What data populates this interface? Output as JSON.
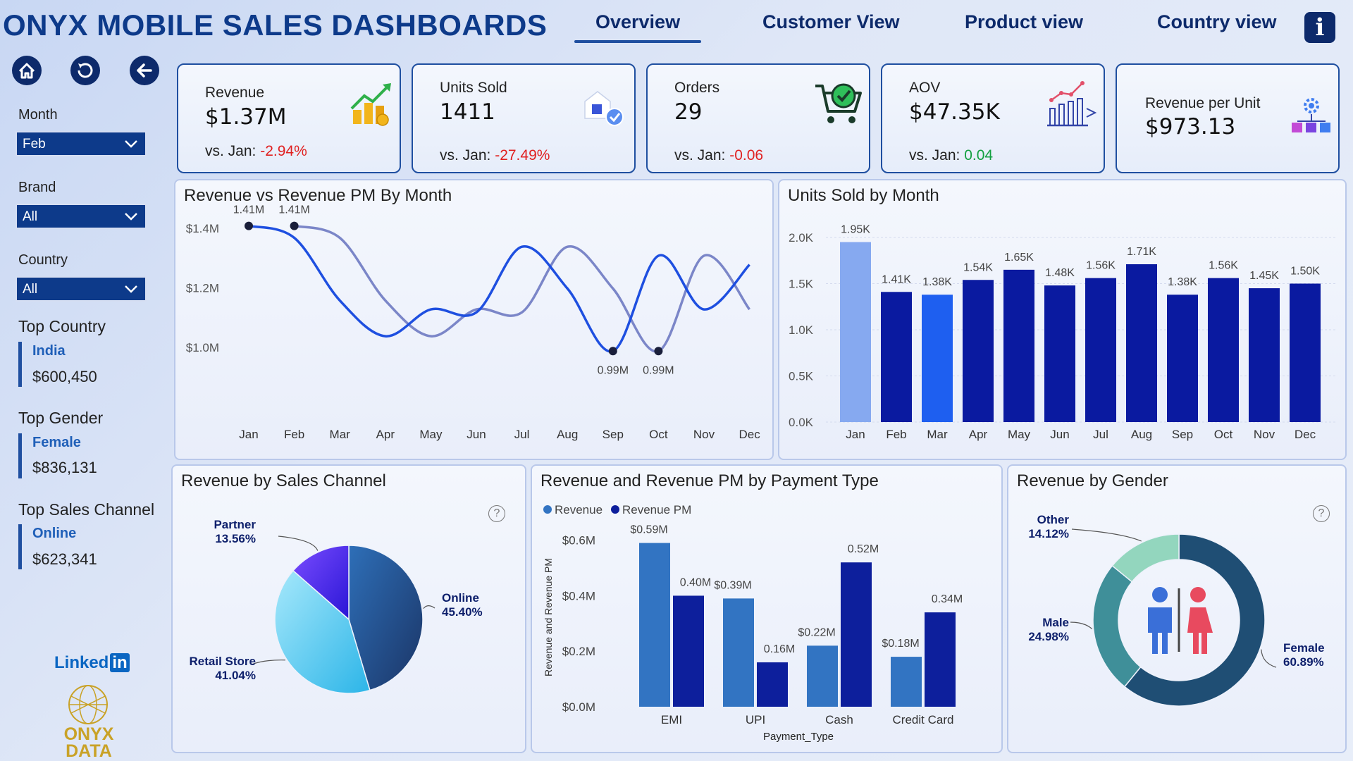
{
  "header": {
    "title": "ONYX MOBILE SALES DASHBOARDS",
    "tabs": [
      {
        "label": "Overview",
        "active": true
      },
      {
        "label": "Customer View",
        "active": false
      },
      {
        "label": "Product view",
        "active": false
      },
      {
        "label": "Country view",
        "active": false
      }
    ],
    "info_icon": "info-icon"
  },
  "nav_icons": [
    "home-icon",
    "reset-icon",
    "back-arrow-icon"
  ],
  "filters": [
    {
      "label": "Month",
      "value": "Feb"
    },
    {
      "label": "Brand",
      "value": "All"
    },
    {
      "label": "Country",
      "value": "All"
    }
  ],
  "tops": [
    {
      "heading": "Top Country",
      "name": "India",
      "value": "$600,450"
    },
    {
      "heading": "Top Gender",
      "name": "Female",
      "value": "$836,131"
    },
    {
      "heading": "Top Sales Channel",
      "name": "Online",
      "value": "$623,341"
    }
  ],
  "brand": {
    "linkedin": "Linked",
    "linkedin_in": "in",
    "logo_line1": "ONYX",
    "logo_line2": "DATA"
  },
  "kpis": [
    {
      "label": "Revenue",
      "value": "$1.37M",
      "vs_prefix": "vs. Jan: ",
      "vs_value": "-2.94%",
      "trend": "negative",
      "icon": "money-growth-icon"
    },
    {
      "label": "Units Sold",
      "value": "1411",
      "vs_prefix": "vs. Jan: ",
      "vs_value": "-27.49%",
      "trend": "negative",
      "icon": "package-check-icon"
    },
    {
      "label": "Orders",
      "value": "29",
      "vs_prefix": "vs. Jan: ",
      "vs_value": "-0.06",
      "trend": "negative",
      "icon": "cart-check-icon"
    },
    {
      "label": "AOV",
      "value": "$47.35K",
      "vs_prefix": "vs. Jan: ",
      "vs_value": "0.04",
      "trend": "positive",
      "icon": "bar-growth-icon"
    },
    {
      "label": "Revenue per Unit",
      "value": "$973.13",
      "icon": "gear-boxes-icon"
    }
  ],
  "panels": {
    "revenue_line": "Revenue vs Revenue PM By Month",
    "units_bar": "Units Sold by Month",
    "sales_channel": "Revenue by Sales Channel",
    "payment": "Revenue and Revenue PM by Payment Type",
    "gender": "Revenue by Gender"
  },
  "chart_data": [
    {
      "type": "line",
      "title": "Revenue vs Revenue PM By Month",
      "categories": [
        "Jan",
        "Feb",
        "Mar",
        "Apr",
        "May",
        "Jun",
        "Jul",
        "Aug",
        "Sep",
        "Oct",
        "Nov",
        "Dec"
      ],
      "yticks": [
        "$1.0M",
        "$1.2M",
        "$1.4M"
      ],
      "ylim": [
        0.96,
        1.48
      ],
      "series": [
        {
          "values": [
            1.41,
            1.37,
            1.16,
            1.04,
            1.13,
            1.12,
            1.34,
            1.2,
            0.99,
            1.31,
            1.13,
            1.28
          ],
          "color": "#1e4fe0"
        },
        {
          "values": [
            null,
            1.41,
            1.37,
            1.16,
            1.04,
            1.13,
            1.12,
            1.34,
            1.2,
            0.99,
            1.31,
            1.13
          ],
          "color": "#7b86c8"
        }
      ],
      "data_labels": [
        {
          "category": "Jan",
          "value": 1.41,
          "text": "1.41M",
          "position": "above"
        },
        {
          "category": "Feb",
          "value": 1.41,
          "text": "1.41M",
          "position": "above"
        },
        {
          "category": "Sep",
          "value": 0.99,
          "text": "0.99M",
          "position": "below"
        },
        {
          "category": "Oct",
          "value": 0.99,
          "text": "0.99M",
          "position": "below"
        }
      ]
    },
    {
      "type": "bar",
      "title": "Units Sold by Month",
      "categories": [
        "Jan",
        "Feb",
        "Mar",
        "Apr",
        "May",
        "Jun",
        "Jul",
        "Aug",
        "Sep",
        "Oct",
        "Nov",
        "Dec"
      ],
      "values": [
        1950,
        1410,
        1380,
        1540,
        1650,
        1480,
        1560,
        1710,
        1380,
        1560,
        1450,
        1500
      ],
      "labels": [
        "1.95K",
        "1.41K",
        "1.38K",
        "1.54K",
        "1.65K",
        "1.48K",
        "1.56K",
        "1.71K",
        "1.38K",
        "1.56K",
        "1.45K",
        "1.50K"
      ],
      "yticks": [
        {
          "v": 0,
          "t": "0.0K"
        },
        {
          "v": 500,
          "t": "0.5K"
        },
        {
          "v": 1000,
          "t": "1.0K"
        },
        {
          "v": 1500,
          "t": "1.5K"
        },
        {
          "v": 2000,
          "t": "2.0K"
        }
      ],
      "ylim": [
        0,
        2000
      ],
      "colors": [
        "#86a9f0",
        "#0a1aa0",
        "#1e5ff0",
        "#0a1aa0",
        "#0a1aa0",
        "#0a1aa0",
        "#0a1aa0",
        "#0a1aa0",
        "#0a1aa0",
        "#0a1aa0",
        "#0a1aa0",
        "#0a1aa0"
      ]
    },
    {
      "type": "pie",
      "title": "Revenue by Sales Channel",
      "slices": [
        {
          "name": "Online",
          "pct_label": "45.40%",
          "value": 45.4,
          "color": "#1f4a86"
        },
        {
          "name": "Retail Store",
          "pct_label": "41.04%",
          "value": 41.04,
          "color": "#3ec3ef"
        },
        {
          "name": "Partner",
          "pct_label": "13.56%",
          "value": 13.56,
          "color": "#3a1ee6"
        }
      ]
    },
    {
      "type": "bar",
      "title": "Revenue and Revenue PM by Payment Type",
      "xlabel": "Payment_Type",
      "ylabel": "Revenue and Revenue PM",
      "categories": [
        "EMI",
        "UPI",
        "Cash",
        "Credit Card"
      ],
      "yticks": [
        "$0.0M",
        "$0.2M",
        "$0.4M",
        "$0.6M"
      ],
      "ylim": [
        0,
        0.66
      ],
      "series": [
        {
          "name": "Revenue",
          "values": [
            0.59,
            0.39,
            0.22,
            0.18
          ],
          "labels": [
            "$0.59M",
            "$0.39M",
            "$0.22M",
            "$0.18M"
          ],
          "color": "#3274c2"
        },
        {
          "name": "Revenue PM",
          "values": [
            0.4,
            0.16,
            0.52,
            0.34
          ],
          "labels": [
            "0.40M",
            "0.16M",
            "0.52M",
            "0.34M"
          ],
          "color": "#0d1f9c"
        }
      ]
    },
    {
      "type": "pie",
      "title": "Revenue by Gender",
      "donut": true,
      "slices": [
        {
          "name": "Female",
          "pct_label": "60.89%",
          "value": 60.89,
          "color": "#1f4e74"
        },
        {
          "name": "Male",
          "pct_label": "24.98%",
          "value": 24.98,
          "color": "#3f8f99"
        },
        {
          "name": "Other",
          "pct_label": "14.12%",
          "value": 14.12,
          "color": "#93d6be"
        }
      ]
    }
  ]
}
